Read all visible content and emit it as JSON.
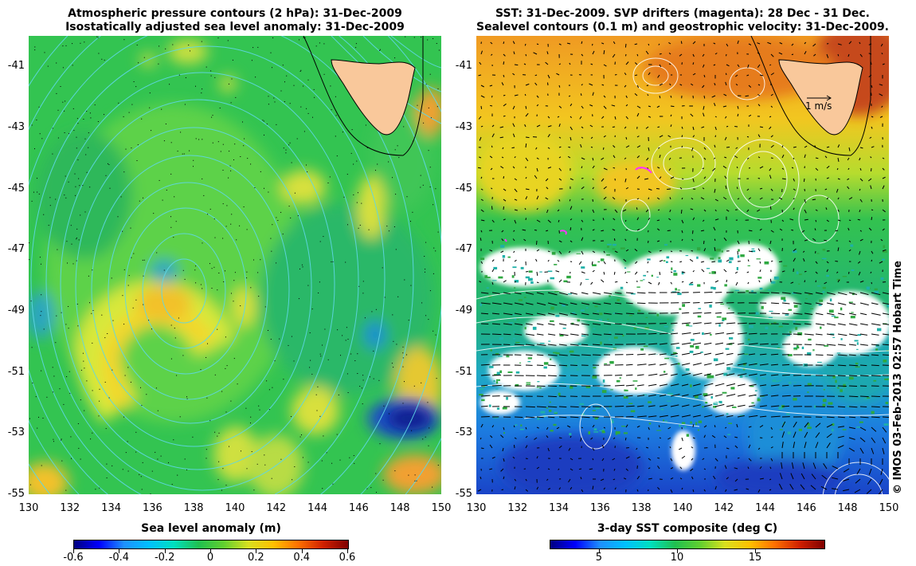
{
  "left_panel": {
    "title_line1": "Atmospheric pressure contours (2 hPa): 31-Dec-2009",
    "title_line2": "Isostatically adjusted sea level anomaly: 31-Dec-2009",
    "colorbar_title": "Sea level anomaly (m)",
    "colorbar_ticks": [
      "-0.6",
      "-0.4",
      "-0.2",
      "0",
      "0.2",
      "0.4",
      "0.6"
    ]
  },
  "right_panel": {
    "title_line1": "SST: 31-Dec-2009. SVP drifters (magenta): 28 Dec - 31 Dec.",
    "title_line2": "Sealevel contours (0.1 m) and geostrophic velocity: 31-Dec-2009.",
    "colorbar_title": "3-day SST composite (deg C)",
    "colorbar_ticks": [
      "5",
      "10",
      "15"
    ],
    "velocity_scale_label": "1 m/s"
  },
  "axes": {
    "lon_ticks": [
      "130",
      "132",
      "134",
      "136",
      "138",
      "140",
      "142",
      "144",
      "146",
      "148",
      "150"
    ],
    "lat_ticks": [
      "-41",
      "-43",
      "-45",
      "-47",
      "-49",
      "-51",
      "-53",
      "-55"
    ]
  },
  "credit": "© IMOS 03-Feb-2013 02:57 Hobart Time",
  "colors": {
    "land": "#f9c89b",
    "pressure_contour": "#5fd7e6",
    "sealevel_contour": "#ffffff",
    "drifter": "#ff33ff"
  }
}
